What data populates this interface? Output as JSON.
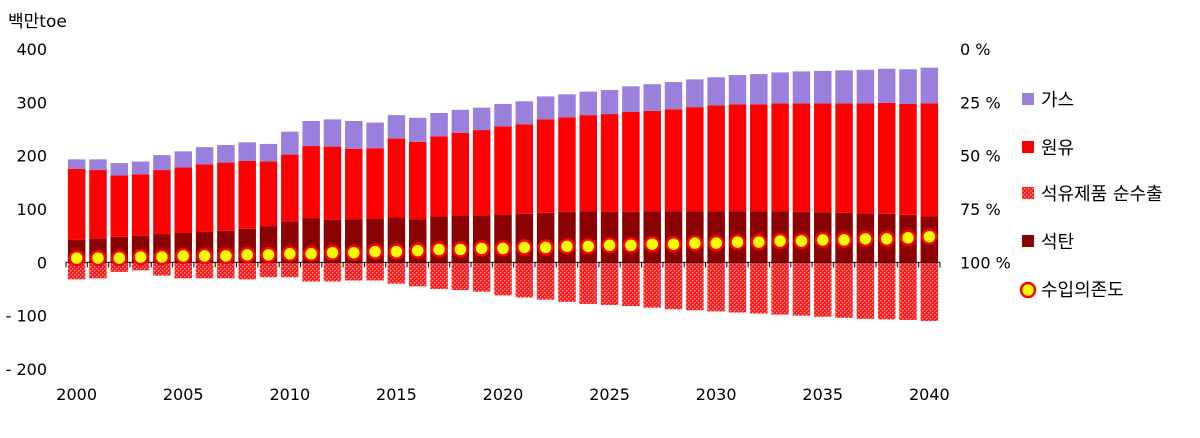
{
  "chart_data": {
    "type": "bar",
    "unit_label": "백만toe",
    "x": [
      2000,
      2001,
      2002,
      2003,
      2004,
      2005,
      2006,
      2007,
      2008,
      2009,
      2010,
      2011,
      2012,
      2013,
      2014,
      2015,
      2016,
      2017,
      2018,
      2019,
      2020,
      2021,
      2022,
      2023,
      2024,
      2025,
      2026,
      2027,
      2028,
      2029,
      2030,
      2031,
      2032,
      2033,
      2034,
      2035,
      2036,
      2037,
      2038,
      2039,
      2040
    ],
    "x_ticks": [
      "2000",
      "2005",
      "2010",
      "2015",
      "2020",
      "2025",
      "2030",
      "2035",
      "2040"
    ],
    "y_left_ticks": [
      "400",
      "300",
      "200",
      "100",
      "0",
      "- 100",
      "- 200"
    ],
    "y_left_range": [
      -200,
      400
    ],
    "y_right_ticks": [
      "100 %",
      "75 %",
      "50 %",
      "25 %",
      "0 %"
    ],
    "y_right_range": [
      0,
      100
    ],
    "grid": false,
    "legend_position": "right",
    "series": [
      {
        "name": "가스",
        "color": "#9a7fdc",
        "values": [
          18,
          20,
          23,
          24,
          28,
          30,
          32,
          33,
          35,
          33,
          43,
          47,
          51,
          52,
          48,
          44,
          45,
          44,
          43,
          42,
          42,
          43,
          43,
          43,
          44,
          45,
          48,
          50,
          51,
          52,
          53,
          55,
          57,
          58,
          60,
          61,
          62,
          63,
          64,
          65,
          67
        ]
      },
      {
        "name": "원유",
        "color": "#ff0000",
        "values": [
          133,
          128,
          115,
          115,
          120,
          123,
          127,
          128,
          127,
          121,
          125,
          135,
          137,
          132,
          132,
          148,
          145,
          150,
          155,
          160,
          165,
          168,
          175,
          177,
          180,
          183,
          187,
          188,
          191,
          195,
          198,
          200,
          200,
          202,
          203,
          204,
          205,
          206,
          208,
          208,
          212
        ]
      },
      {
        "name": "석유제품 순수출",
        "color": "#ff4d4d",
        "values": [
          -32,
          -30,
          -18,
          -15,
          -25,
          -30,
          -30,
          -30,
          -32,
          -28,
          -28,
          -36,
          -36,
          -34,
          -34,
          -40,
          -45,
          -50,
          -52,
          -55,
          -62,
          -66,
          -70,
          -74,
          -78,
          -80,
          -82,
          -85,
          -88,
          -90,
          -92,
          -94,
          -96,
          -98,
          -100,
          -102,
          -104,
          -106,
          -107,
          -108,
          -110
        ]
      },
      {
        "name": "석탄",
        "color": "#8b0000",
        "values": [
          42,
          45,
          48,
          50,
          53,
          55,
          57,
          59,
          63,
          68,
          77,
          83,
          80,
          81,
          82,
          84,
          81,
          86,
          88,
          88,
          90,
          91,
          93,
          95,
          96,
          95,
          95,
          96,
          96,
          96,
          96,
          96,
          96,
          96,
          95,
          94,
          93,
          92,
          91,
          89,
          86
        ]
      },
      {
        "name": "수입의존도",
        "color": "#ffff00",
        "edge": "#ff0000",
        "values": [
          98,
          98,
          98,
          97.5,
          97.5,
          97,
          97,
          97,
          96.5,
          96.5,
          96,
          96,
          95.5,
          95.5,
          95,
          95,
          94.5,
          94,
          94,
          93.5,
          93.5,
          93,
          93,
          92.5,
          92.5,
          92,
          92,
          91.5,
          91.5,
          91,
          91,
          90.5,
          90.5,
          90,
          90,
          89.5,
          89.5,
          89,
          89,
          88.5,
          88
        ]
      }
    ]
  }
}
